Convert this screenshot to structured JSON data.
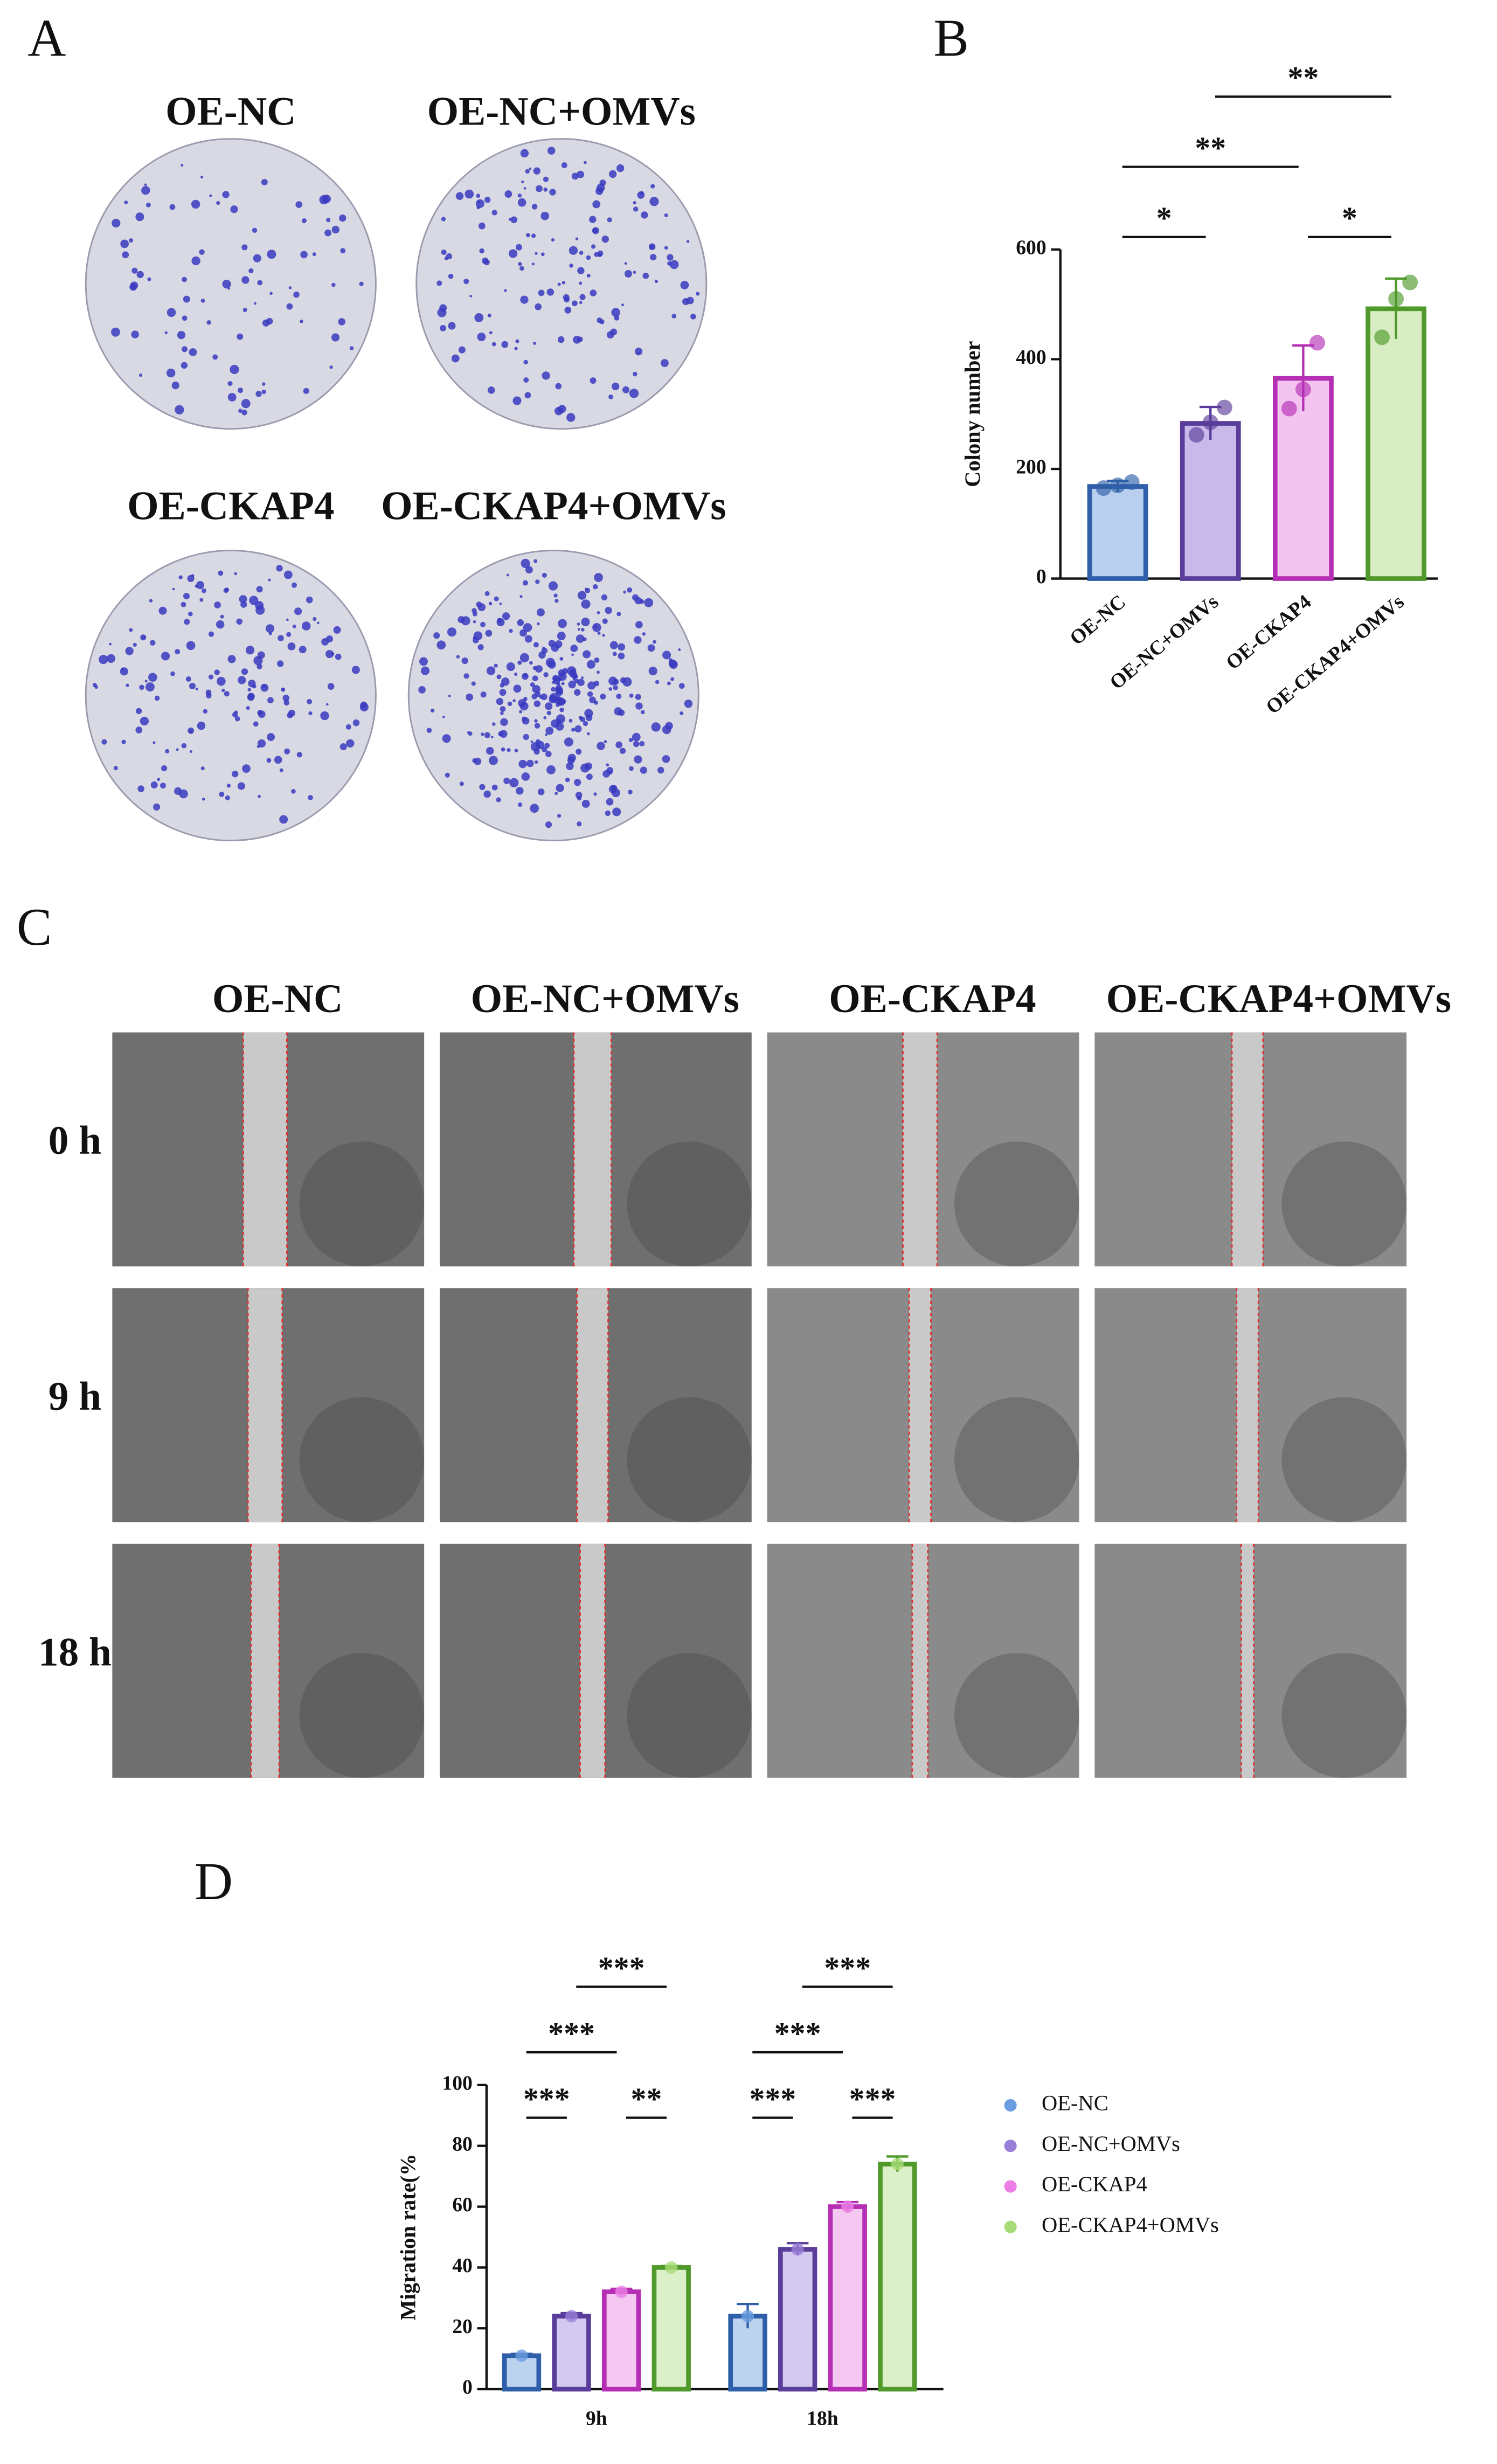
{
  "panel_A": {
    "label": "A",
    "plates": [
      "OE-NC",
      "OE-NC+OMVs",
      "OE-CKAP4",
      "OE-CKAP4+OMVs"
    ]
  },
  "panel_C": {
    "label": "C",
    "columns": [
      "OE-NC",
      "OE-NC+OMVs",
      "OE-CKAP4",
      "OE-CKAP4+OMVs"
    ],
    "rows": [
      "0 h",
      "9 h",
      "18 h"
    ]
  },
  "chart_data": [
    {
      "type": "bar",
      "panel_label": "B",
      "ylabel": "Colony number",
      "categories": [
        "OE-NC",
        "OE-NC+OMVs",
        "OE-CKAP4",
        "OE-CKAP4+OMVs"
      ],
      "values": [
        168,
        283,
        365,
        492
      ],
      "errors": [
        10,
        30,
        60,
        55
      ],
      "points": [
        [
          165,
          170,
          176
        ],
        [
          262,
          285,
          312
        ],
        [
          310,
          345,
          430
        ],
        [
          440,
          510,
          540
        ]
      ],
      "colors": [
        "#2e5fa8",
        "#5a3d9a",
        "#b52fb5",
        "#4f9a2a"
      ],
      "fills": [
        "#b9cff0",
        "#c9b9ea",
        "#f4c4f0",
        "#d9edc4"
      ],
      "ylim": [
        0,
        600
      ],
      "yticks": [
        0,
        200,
        400,
        600
      ],
      "annotations": [
        {
          "text": "*",
          "from": "OE-NC",
          "to": "OE-NC+OMVs"
        },
        {
          "text": "*",
          "from": "OE-CKAP4",
          "to": "OE-CKAP4+OMVs"
        },
        {
          "text": "**",
          "from": "OE-NC",
          "to": "OE-CKAP4"
        },
        {
          "text": "**",
          "from": "OE-NC+OMVs",
          "to": "OE-CKAP4+OMVs"
        }
      ]
    },
    {
      "type": "grouped_bar",
      "panel_label": "D",
      "ylabel": "Migration rate(%",
      "categories": [
        "9h",
        "18h"
      ],
      "series": [
        {
          "name": "OE-NC",
          "color": "#6b9ee0",
          "edge": "#2e5fa8",
          "fill": "#bcd3f0",
          "values": [
            11,
            24
          ],
          "errors": [
            0.6,
            4
          ]
        },
        {
          "name": "OE-NC+OMVs",
          "color": "#9a7fd8",
          "edge": "#5a3d9a",
          "fill": "#d3c8ef",
          "values": [
            24,
            46
          ],
          "errors": [
            1,
            2
          ]
        },
        {
          "name": "OE-CKAP4",
          "color": "#ec7fe6",
          "edge": "#b52fb5",
          "fill": "#f5c8f1",
          "values": [
            32,
            60
          ],
          "errors": [
            1,
            1.5
          ]
        },
        {
          "name": "OE-CKAP4+OMVs",
          "color": "#a8dc78",
          "edge": "#4f9a2a",
          "fill": "#dbefc8",
          "values": [
            40,
            74
          ],
          "errors": [
            0.5,
            2.5
          ]
        }
      ],
      "ylim": [
        0,
        100
      ],
      "yticks": [
        0,
        20,
        40,
        60,
        80,
        100
      ],
      "annotations": [
        {
          "category": "9h",
          "text": "***",
          "from": "OE-NC",
          "to": "OE-NC+OMVs"
        },
        {
          "category": "9h",
          "text": "**",
          "from": "OE-CKAP4",
          "to": "OE-CKAP4+OMVs"
        },
        {
          "category": "9h",
          "text": "***",
          "from": "OE-NC",
          "to": "OE-CKAP4"
        },
        {
          "category": "9h",
          "text": "***",
          "from": "OE-NC+OMVs",
          "to": "OE-CKAP4+OMVs"
        },
        {
          "category": "18h",
          "text": "***",
          "from": "OE-NC",
          "to": "OE-NC+OMVs"
        },
        {
          "category": "18h",
          "text": "***",
          "from": "OE-CKAP4",
          "to": "OE-CKAP4+OMVs"
        },
        {
          "category": "18h",
          "text": "***",
          "from": "OE-NC",
          "to": "OE-CKAP4"
        },
        {
          "category": "18h",
          "text": "***",
          "from": "OE-NC+OMVs",
          "to": "OE-CKAP4+OMVs"
        }
      ]
    }
  ]
}
